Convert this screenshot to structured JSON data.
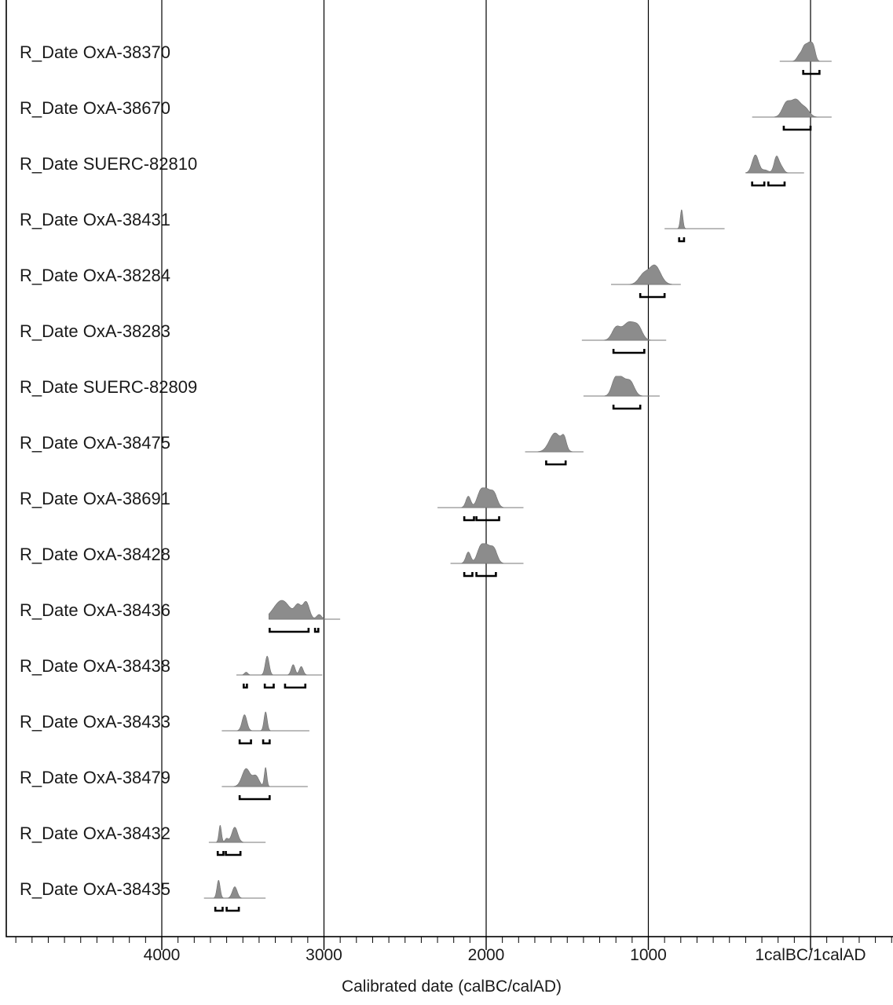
{
  "chart_data": {
    "type": "other",
    "subtype": "oxcal-multiplot",
    "xlabel": "Calibrated date (calBC/calAD)",
    "x_direction": "reversed",
    "xlim": [
      -4950,
      500
    ],
    "ticks": [
      {
        "value": -4000,
        "label": "4000"
      },
      {
        "value": -3000,
        "label": "3000"
      },
      {
        "value": -2000,
        "label": "2000"
      },
      {
        "value": -1000,
        "label": "1000"
      },
      {
        "value": 0,
        "label": "1calBC/1calAD"
      }
    ],
    "gridlines": [
      -4000,
      -3000,
      -2000,
      -1000,
      0
    ],
    "distribution_color": "#8c8c8c",
    "series": [
      {
        "name": "R_Date OxA-38370",
        "range": [
          -190,
          130
        ],
        "peaks": [
          [
            -5,
            20,
            0.95
          ],
          [
            -40,
            15,
            0.6
          ],
          [
            -70,
            15,
            0.3
          ],
          [
            20,
            12,
            0.4
          ]
        ],
        "hpd": [
          [
            -45,
            55
          ]
        ]
      },
      {
        "name": "R_Date OxA-38670",
        "range": [
          -360,
          130
        ],
        "peaks": [
          [
            -90,
            30,
            0.9
          ],
          [
            -150,
            25,
            0.7
          ],
          [
            -30,
            25,
            0.4
          ]
        ],
        "hpd": [
          [
            -165,
            0
          ]
        ]
      },
      {
        "name": "R_Date SUERC-82810",
        "range": [
          -400,
          -40
        ],
        "peaks": [
          [
            -340,
            20,
            0.95
          ],
          [
            -210,
            15,
            0.85
          ],
          [
            -280,
            20,
            0.15
          ],
          [
            -180,
            15,
            0.3
          ]
        ],
        "hpd": [
          [
            -360,
            -285
          ],
          [
            -260,
            -160
          ]
        ]
      },
      {
        "name": "R_Date OxA-38431",
        "range": [
          -900,
          -530
        ],
        "peaks": [
          [
            -795,
            8,
            1.0
          ]
        ],
        "hpd": [
          [
            -810,
            -780
          ]
        ]
      },
      {
        "name": "R_Date OxA-38284",
        "range": [
          -1230,
          -800
        ],
        "peaks": [
          [
            -960,
            35,
            1.0
          ],
          [
            -1030,
            30,
            0.5
          ]
        ],
        "hpd": [
          [
            -1050,
            -900
          ]
        ]
      },
      {
        "name": "R_Date OxA-38283",
        "range": [
          -1410,
          -890
        ],
        "peaks": [
          [
            -1120,
            40,
            0.95
          ],
          [
            -1200,
            25,
            0.6
          ],
          [
            -1060,
            25,
            0.5
          ]
        ],
        "hpd": [
          [
            -1215,
            -1025
          ]
        ]
      },
      {
        "name": "R_Date SUERC-82809",
        "range": [
          -1400,
          -930
        ],
        "peaks": [
          [
            -1170,
            30,
            0.95
          ],
          [
            -1110,
            25,
            0.7
          ],
          [
            -1210,
            20,
            0.55
          ]
        ],
        "hpd": [
          [
            -1215,
            -1050
          ]
        ]
      },
      {
        "name": "R_Date OxA-38475",
        "range": [
          -1760,
          -1400
        ],
        "peaks": [
          [
            -1575,
            35,
            1.0
          ],
          [
            -1520,
            15,
            0.6
          ]
        ],
        "hpd": [
          [
            -1630,
            -1510
          ]
        ]
      },
      {
        "name": "R_Date OxA-38691",
        "range": [
          -2300,
          -1770
        ],
        "peaks": [
          [
            -2000,
            30,
            0.95
          ],
          [
            -1950,
            20,
            0.6
          ],
          [
            -2110,
            15,
            0.6
          ],
          [
            -2040,
            20,
            0.5
          ]
        ],
        "hpd": [
          [
            -2135,
            -2075
          ],
          [
            -2060,
            -1920
          ]
        ]
      },
      {
        "name": "R_Date OxA-38428",
        "range": [
          -2220,
          -1770
        ],
        "peaks": [
          [
            -2000,
            30,
            0.95
          ],
          [
            -1950,
            20,
            0.6
          ],
          [
            -2110,
            15,
            0.6
          ],
          [
            -2040,
            20,
            0.5
          ]
        ],
        "hpd": [
          [
            -2135,
            -2085
          ],
          [
            -2060,
            -1940
          ]
        ]
      },
      {
        "name": "R_Date OxA-38436",
        "range": [
          -3340,
          -2900
        ],
        "peaks": [
          [
            -3260,
            50,
            1.0
          ],
          [
            -3160,
            20,
            0.65
          ],
          [
            -3110,
            20,
            0.9
          ],
          [
            -3030,
            15,
            0.25
          ]
        ],
        "hpd": [
          [
            -3335,
            -3095
          ],
          [
            -3055,
            -3035
          ]
        ]
      },
      {
        "name": "R_Date OxA-38438",
        "range": [
          -3540,
          -3010
        ],
        "peaks": [
          [
            -3350,
            12,
            1.0
          ],
          [
            -3190,
            12,
            0.55
          ],
          [
            -3140,
            12,
            0.45
          ],
          [
            -3480,
            10,
            0.15
          ]
        ],
        "hpd": [
          [
            -3495,
            -3475
          ],
          [
            -3365,
            -3310
          ],
          [
            -3240,
            -3115
          ]
        ]
      },
      {
        "name": "R_Date OxA-38433",
        "range": [
          -3630,
          -3090
        ],
        "peaks": [
          [
            -3490,
            15,
            0.85
          ],
          [
            -3360,
            10,
            1.0
          ]
        ],
        "hpd": [
          [
            -3520,
            -3450
          ],
          [
            -3375,
            -3335
          ]
        ]
      },
      {
        "name": "R_Date OxA-38479",
        "range": [
          -3630,
          -3100
        ],
        "peaks": [
          [
            -3480,
            25,
            0.95
          ],
          [
            -3420,
            20,
            0.55
          ],
          [
            -3360,
            8,
            1.0
          ]
        ],
        "hpd": [
          [
            -3520,
            -3335
          ]
        ]
      },
      {
        "name": "R_Date OxA-38432",
        "range": [
          -3710,
          -3360
        ],
        "peaks": [
          [
            -3640,
            8,
            0.9
          ],
          [
            -3550,
            18,
            0.8
          ],
          [
            -3600,
            10,
            0.2
          ]
        ],
        "hpd": [
          [
            -3655,
            -3620
          ],
          [
            -3605,
            -3515
          ]
        ]
      },
      {
        "name": "R_Date OxA-38435",
        "range": [
          -3740,
          -3360
        ],
        "peaks": [
          [
            -3650,
            10,
            0.95
          ],
          [
            -3550,
            15,
            0.6
          ]
        ],
        "hpd": [
          [
            -3670,
            -3625
          ],
          [
            -3600,
            -3525
          ]
        ]
      }
    ]
  }
}
